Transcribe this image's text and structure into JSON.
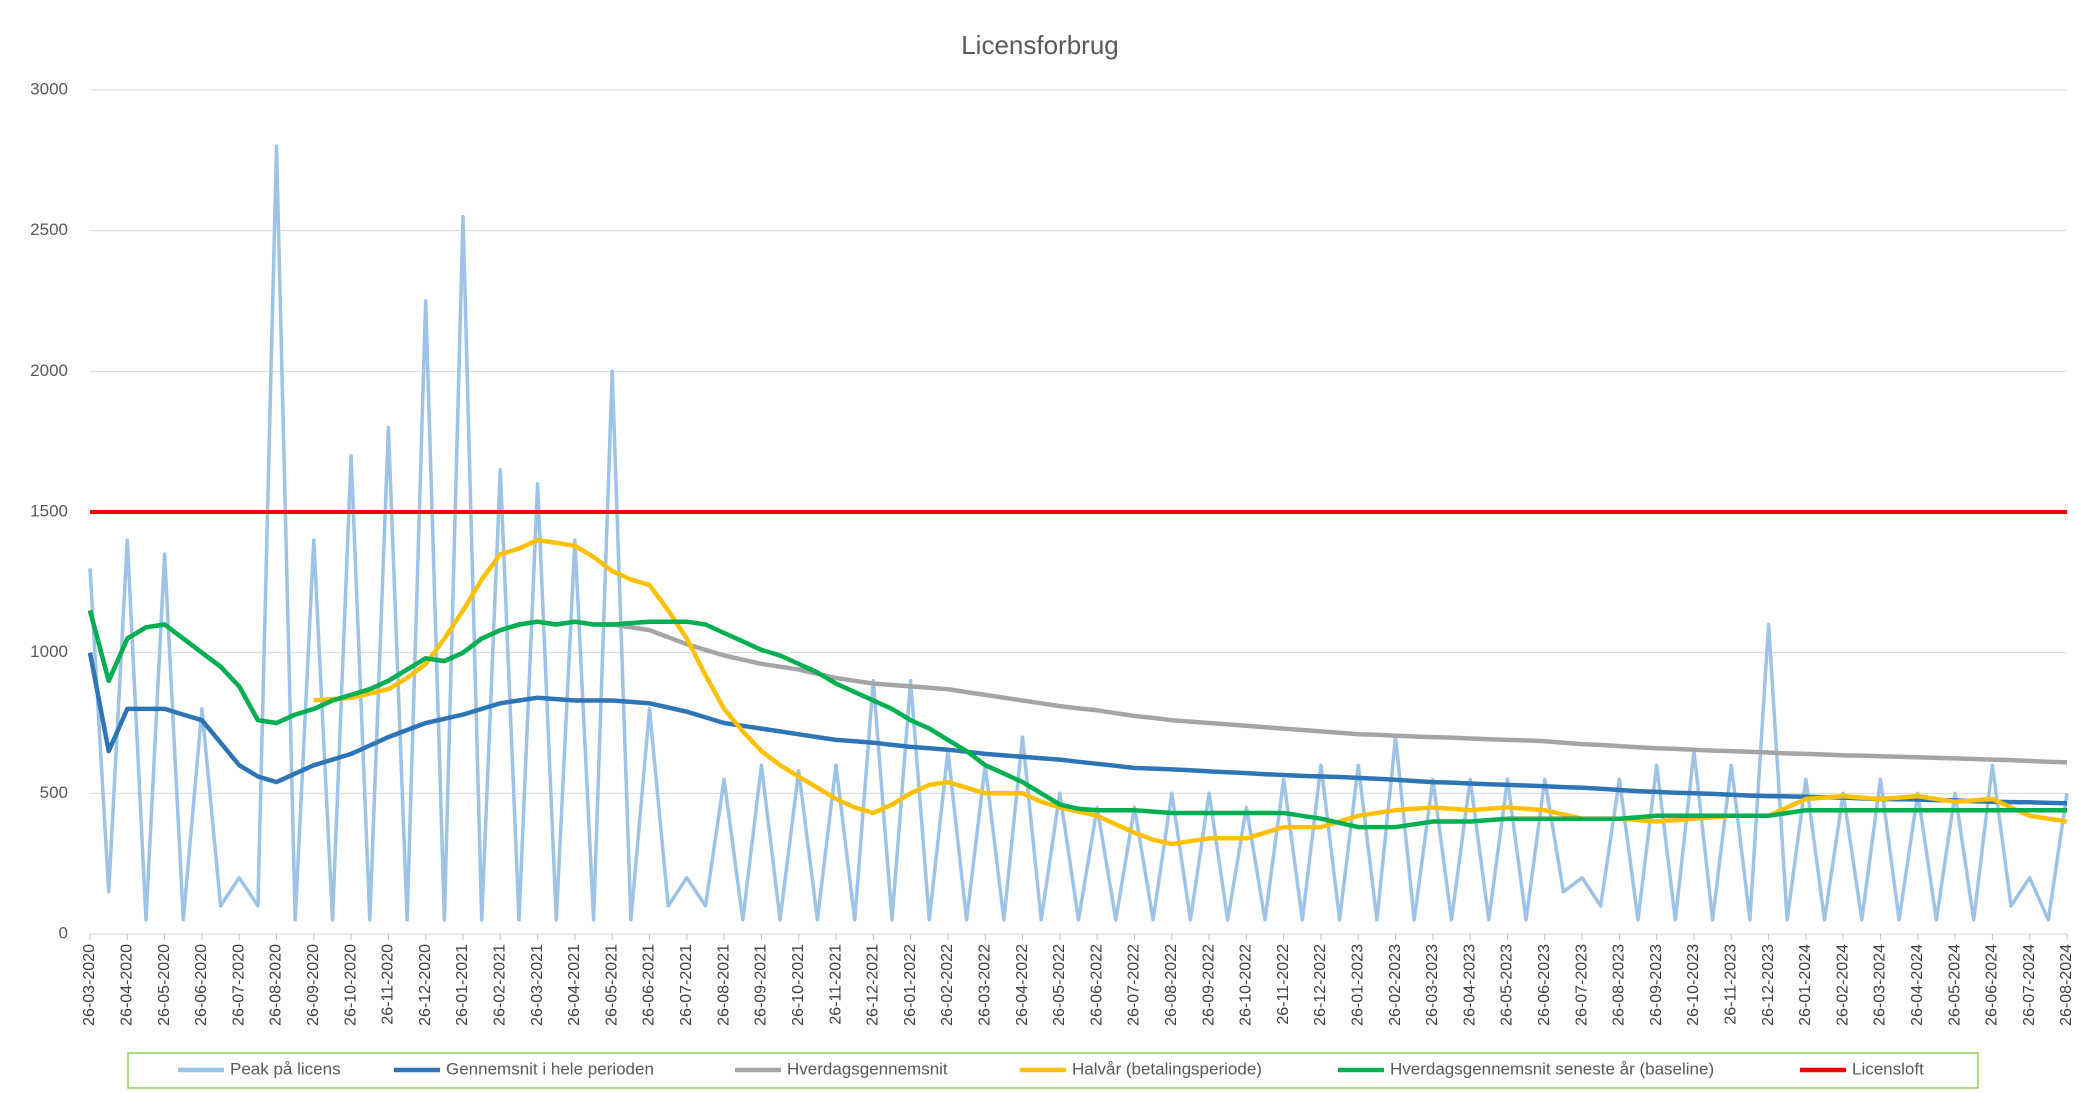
{
  "chart_data": {
    "type": "line",
    "title": "Licensforbrug",
    "categories": [
      "26-03-2020",
      null,
      "26-04-2020",
      null,
      "26-05-2020",
      null,
      "26-06-2020",
      null,
      "26-07-2020",
      null,
      "26-08-2020",
      null,
      "26-09-2020",
      null,
      "26-10-2020",
      null,
      "26-11-2020",
      null,
      "26-12-2020",
      null,
      "26-01-2021",
      null,
      "26-02-2021",
      null,
      "26-03-2021",
      null,
      "26-04-2021",
      null,
      "26-05-2021",
      null,
      "26-06-2021",
      null,
      "26-07-2021",
      null,
      "26-08-2021",
      null,
      "26-09-2021",
      null,
      "26-10-2021",
      null,
      "26-11-2021",
      null,
      "26-12-2021",
      null,
      "26-01-2022",
      null,
      "26-02-2022",
      null,
      "26-03-2022",
      null,
      "26-04-2022",
      null,
      "26-05-2022",
      null,
      "26-06-2022",
      null,
      "26-07-2022",
      null,
      "26-08-2022",
      null,
      "26-09-2022",
      null,
      "26-10-2022",
      null,
      "26-11-2022",
      null,
      "26-12-2022",
      null,
      "26-01-2023",
      null,
      "26-02-2023",
      null,
      "26-03-2023",
      null,
      "26-04-2023",
      null,
      "26-05-2023",
      null,
      "26-06-2023",
      null,
      "26-07-2023",
      null,
      "26-08-2023",
      null,
      "26-09-2023",
      null,
      "26-10-2023",
      null,
      "26-11-2023",
      null,
      "26-12-2023",
      null,
      "26-01-2024",
      null,
      "26-02-2024",
      null,
      "26-03-2024",
      null,
      "26-04-2024",
      null,
      "26-05-2024",
      null,
      "26-06-2024",
      null,
      "26-07-2024",
      null,
      "26-08-2024"
    ],
    "series": [
      {
        "name": "Peak på licens",
        "color": "#9dc3e6",
        "values": [
          1300,
          150,
          1400,
          50,
          1350,
          50,
          800,
          100,
          200,
          100,
          2800,
          50,
          1400,
          50,
          1700,
          50,
          1800,
          50,
          2250,
          50,
          2550,
          50,
          1650,
          50,
          1600,
          50,
          1400,
          50,
          2000,
          50,
          800,
          100,
          200,
          100,
          550,
          50,
          600,
          50,
          580,
          50,
          600,
          50,
          900,
          50,
          900,
          50,
          650,
          50,
          600,
          50,
          700,
          50,
          500,
          50,
          450,
          50,
          450,
          50,
          500,
          50,
          500,
          50,
          450,
          50,
          550,
          50,
          600,
          50,
          600,
          50,
          700,
          50,
          550,
          50,
          550,
          50,
          550,
          50,
          550,
          150,
          200,
          100,
          550,
          50,
          600,
          50,
          650,
          50,
          600,
          50,
          1100,
          50,
          550,
          50,
          500,
          50,
          550,
          50,
          500,
          50,
          500,
          50,
          600,
          100,
          200,
          50,
          500
        ]
      },
      {
        "name": "Gennemsnit i hele perioden",
        "color": "#2e75b6",
        "values": [
          1000,
          650,
          800,
          800,
          800,
          780,
          760,
          680,
          600,
          560,
          540,
          570,
          600,
          620,
          640,
          670,
          700,
          725,
          750,
          765,
          780,
          800,
          820,
          830,
          840,
          835,
          830,
          830,
          830,
          825,
          820,
          805,
          790,
          770,
          750,
          740,
          730,
          720,
          710,
          700,
          690,
          685,
          680,
          672,
          665,
          660,
          655,
          648,
          640,
          635,
          630,
          625,
          620,
          612,
          605,
          598,
          590,
          588,
          585,
          582,
          578,
          575,
          572,
          568,
          565,
          562,
          560,
          558,
          555,
          552,
          548,
          544,
          540,
          538,
          535,
          532,
          530,
          528,
          525,
          522,
          520,
          516,
          512,
          508,
          505,
          502,
          500,
          498,
          495,
          492,
          490,
          489,
          488,
          486,
          485,
          482,
          480,
          479,
          478,
          476,
          475,
          472,
          470,
          469,
          468,
          466,
          465
        ]
      },
      {
        "name": "Hverdagsgennemsnit",
        "color": "#a5a5a5",
        "values": [
          1150,
          900,
          1050,
          1090,
          1100,
          1050,
          1000,
          950,
          880,
          760,
          750,
          780,
          800,
          830,
          850,
          870,
          900,
          940,
          980,
          970,
          1000,
          1050,
          1080,
          1100,
          1110,
          1100,
          1110,
          1100,
          1100,
          1090,
          1080,
          1055,
          1030,
          1010,
          990,
          975,
          960,
          950,
          940,
          925,
          910,
          900,
          890,
          885,
          880,
          875,
          870,
          860,
          850,
          840,
          830,
          820,
          810,
          802,
          795,
          785,
          775,
          768,
          760,
          755,
          750,
          745,
          740,
          735,
          730,
          725,
          720,
          715,
          710,
          708,
          705,
          702,
          700,
          698,
          695,
          692,
          690,
          688,
          685,
          680,
          675,
          672,
          668,
          664,
          660,
          658,
          655,
          652,
          650,
          648,
          645,
          642,
          640,
          638,
          635,
          634,
          632,
          630,
          628,
          626,
          624,
          622,
          620,
          618,
          615,
          612,
          610
        ]
      },
      {
        "name": "Halvår (betalingsperiode)",
        "color": "#ffc000",
        "values": [
          null,
          null,
          null,
          null,
          null,
          null,
          null,
          null,
          null,
          null,
          null,
          null,
          830,
          835,
          840,
          855,
          870,
          910,
          960,
          1050,
          1150,
          1260,
          1350,
          1370,
          1400,
          1390,
          1380,
          1340,
          1290,
          1260,
          1240,
          1150,
          1050,
          920,
          800,
          720,
          650,
          600,
          560,
          520,
          480,
          450,
          430,
          460,
          500,
          530,
          540,
          520,
          500,
          500,
          500,
          470,
          450,
          435,
          420,
          390,
          360,
          335,
          320,
          330,
          340,
          340,
          340,
          360,
          380,
          380,
          380,
          400,
          420,
          430,
          440,
          445,
          450,
          445,
          440,
          445,
          450,
          445,
          440,
          425,
          410,
          410,
          410,
          405,
          400,
          405,
          410,
          415,
          420,
          420,
          420,
          450,
          480,
          485,
          490,
          485,
          480,
          485,
          490,
          480,
          470,
          475,
          480,
          450,
          420,
          410,
          400
        ]
      },
      {
        "name": "Hverdagsgennemsnit seneste år (baseline)",
        "color": "#00b050",
        "values": [
          1150,
          900,
          1050,
          1090,
          1100,
          1050,
          1000,
          950,
          880,
          760,
          750,
          780,
          800,
          830,
          850,
          870,
          900,
          940,
          980,
          970,
          1000,
          1050,
          1080,
          1100,
          1110,
          1100,
          1110,
          1100,
          1100,
          1105,
          1110,
          1110,
          1110,
          1100,
          1070,
          1040,
          1010,
          990,
          960,
          930,
          890,
          860,
          830,
          800,
          760,
          730,
          690,
          650,
          600,
          570,
          540,
          500,
          460,
          445,
          440,
          440,
          440,
          435,
          430,
          430,
          430,
          430,
          430,
          430,
          430,
          420,
          410,
          395,
          380,
          380,
          380,
          390,
          400,
          400,
          400,
          405,
          410,
          410,
          410,
          410,
          410,
          410,
          410,
          415,
          420,
          420,
          420,
          420,
          420,
          420,
          420,
          430,
          440,
          440,
          440,
          440,
          440,
          440,
          440,
          440,
          440,
          440,
          440,
          440,
          440,
          440,
          440
        ]
      }
    ],
    "reference_lines": [
      {
        "name": "Licensloft",
        "color": "#ff0000",
        "value": 1500
      }
    ],
    "ylim": [
      0,
      3000
    ],
    "yticks": [
      0,
      500,
      1000,
      1500,
      2000,
      2500,
      3000
    ],
    "grid": true
  }
}
